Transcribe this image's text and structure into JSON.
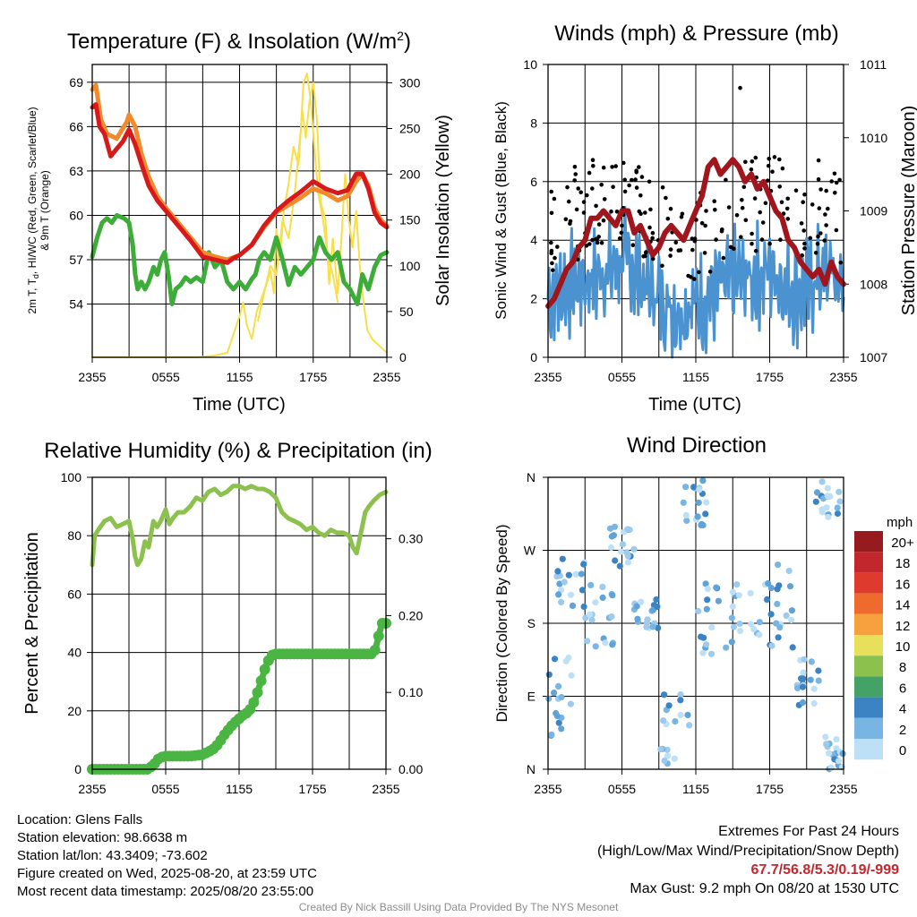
{
  "colors": {
    "temp_2m": "#d7191c",
    "dewpoint": "#3eac38",
    "hi_wc_scarlet": "#d7301f",
    "temp_9m_orange": "#f08a2c",
    "insolation": "#f6df4a",
    "wind": "#4a93d0",
    "gust": "#000000",
    "pressure": "#a1161c",
    "rh": "#8cc14e",
    "precip": "#4bb543"
  },
  "footer": {
    "location": "Location: Glens Falls",
    "elevation": "Station elevation: 98.6638 m",
    "latlon": "Station lat/lon: 43.3409; -73.602",
    "created": "Figure created on Wed, 2025-08-20, at 23:59 UTC",
    "recent": "Most recent data timestamp: 2025/08/20 23:55:00",
    "extremes_title": "Extremes For Past 24 Hours",
    "extremes_subtitle": "(High/Low/Max Wind/Precipitation/Snow Depth)",
    "extremes_values": "67.7/56.8/5.3/0.19/-999",
    "max_gust": "Max Gust: 9.2 mph On 08/20 at 1530 UTC",
    "credit": "Created By Nick Bassill Using Data Provided By The NYS Mesonet"
  },
  "chart_data": [
    {
      "id": "temperature",
      "type": "line",
      "title": "Temperature (F) & Insolation (W/m",
      "title_sup": "2",
      "title_end": ")",
      "xlabel": "Time (UTC)",
      "ylabel_lines": [
        "2m T, T",
        "d",
        ", HI/WC (Red, Green, Scarlet/Blue)",
        "& 9m T (Orange)"
      ],
      "ylabel_right": "Solar Insolation (Yellow)",
      "x_ticks": [
        "2355",
        "0555",
        "1155",
        "1755",
        "2355"
      ],
      "x_range_hours": [
        0,
        24
      ],
      "y_ticks": [
        54,
        57,
        60,
        63,
        66,
        69
      ],
      "ylim": [
        50.4,
        70.2
      ],
      "y2_ticks": [
        0,
        50,
        100,
        150,
        200,
        250,
        300
      ],
      "y2lim": [
        0,
        320
      ],
      "series": [
        {
          "key": "temp_9m",
          "axis": "left",
          "x": [
            0,
            0.3,
            0.7,
            1.2,
            2,
            2.8,
            3,
            3.5,
            4,
            4.6,
            5.3,
            6,
            7,
            8,
            9,
            10,
            11,
            12,
            13,
            14,
            15,
            16,
            17,
            18,
            19,
            20,
            20.8,
            21.5,
            22,
            22.5,
            23,
            23.5,
            24
          ],
          "y": [
            68.5,
            68.8,
            66.5,
            65.5,
            65.2,
            66.3,
            66.8,
            66.0,
            64.2,
            62.6,
            61.3,
            60.5,
            59.5,
            58.5,
            57.5,
            57.2,
            57.0,
            57.3,
            58.0,
            59.2,
            60.2,
            60.7,
            61.2,
            61.8,
            61.5,
            61.0,
            61.3,
            62.3,
            62.8,
            62.0,
            60.5,
            59.7,
            59.3
          ]
        },
        {
          "key": "temp_2m",
          "axis": "left",
          "x": [
            0,
            0.3,
            0.6,
            1,
            1.5,
            2,
            2.5,
            3,
            3.5,
            4,
            4.6,
            5.3,
            6,
            7,
            8,
            9,
            10,
            11,
            11.5,
            12,
            13,
            14,
            15,
            16,
            17,
            18,
            19,
            20,
            20.8,
            21.5,
            22,
            22.5,
            23,
            23.5,
            24
          ],
          "y": [
            67.3,
            67.5,
            66.0,
            65.5,
            64.0,
            64.5,
            65.0,
            65.8,
            64.8,
            63.5,
            62.0,
            61.0,
            60.3,
            59.3,
            58.3,
            57.2,
            57.0,
            56.8,
            57.1,
            57.3,
            58.0,
            59.3,
            60.3,
            61.0,
            61.6,
            62.3,
            61.8,
            61.5,
            61.7,
            62.8,
            62.8,
            61.8,
            60.2,
            59.5,
            59.2
          ]
        },
        {
          "key": "dewpoint",
          "axis": "left",
          "x": [
            0,
            0.4,
            0.8,
            1.2,
            1.6,
            2,
            2.6,
            3,
            3.3,
            3.5,
            3.7,
            4,
            4.3,
            4.6,
            5,
            5.3,
            5.6,
            5.9,
            6.2,
            6.5,
            6.8,
            7.2,
            7.6,
            8,
            8.5,
            9,
            9.5,
            10,
            10.5,
            11,
            11.5,
            12,
            12.5,
            13,
            13.3,
            13.6,
            14,
            14.5,
            15,
            15.5,
            16,
            16.5,
            17,
            17.5,
            18,
            18.5,
            19,
            19.5,
            20,
            20.5,
            21,
            21.3,
            21.6,
            22,
            22.5,
            23,
            23.5,
            24
          ],
          "y": [
            57.2,
            58.5,
            59.5,
            59.8,
            59.5,
            60.0,
            59.8,
            59.5,
            58.0,
            56.0,
            55.0,
            55.5,
            55.0,
            55.5,
            56.5,
            56.0,
            57.0,
            57.5,
            56.0,
            54.0,
            55.0,
            55.3,
            55.8,
            55.5,
            55.8,
            55.5,
            57.5,
            56.5,
            57.0,
            55.5,
            55.0,
            55.5,
            55.0,
            55.7,
            56.0,
            57.0,
            57.5,
            57.0,
            58.5,
            57.0,
            55.3,
            56.5,
            56.0,
            56.5,
            57.0,
            58.5,
            57.5,
            57.0,
            57.5,
            55.5,
            55.0,
            54.5,
            54.0,
            56.0,
            55.0,
            56.5,
            57.3,
            57.5
          ]
        },
        {
          "key": "insolation",
          "axis": "right",
          "x": [
            0,
            3,
            6,
            8.5,
            10,
            11,
            11.5,
            12,
            12.3,
            12.6,
            13,
            13.4,
            13.8,
            14.2,
            14.5,
            14.8,
            15,
            15.3,
            15.6,
            16,
            16.4,
            16.8,
            17.1,
            17.4,
            17.7,
            18,
            18.3,
            18.6,
            19,
            19.3,
            19.6,
            20,
            20.3,
            20.6,
            20.9,
            21.2,
            21.5,
            21.8,
            22.1,
            22.4,
            22.8,
            23.2,
            23.6,
            24
          ],
          "y": [
            0,
            0,
            0,
            0,
            2,
            5,
            25,
            45,
            60,
            35,
            20,
            50,
            65,
            80,
            95,
            70,
            140,
            110,
            160,
            190,
            230,
            210,
            270,
            240,
            280,
            300,
            260,
            170,
            150,
            80,
            130,
            70,
            130,
            200,
            150,
            120,
            160,
            100,
            60,
            30,
            20,
            15,
            10,
            5
          ]
        },
        {
          "key": "insolation_b",
          "axis": "right",
          "x": [
            13.5,
            14,
            14.5,
            15,
            15.5,
            16,
            16.5,
            17,
            17.2,
            17.5,
            17.8,
            18.1,
            18.4,
            18.8,
            19.2,
            19.6,
            20
          ],
          "y": [
            40,
            70,
            100,
            90,
            150,
            130,
            180,
            250,
            300,
            310,
            280,
            230,
            180,
            150,
            110,
            90,
            60
          ]
        }
      ]
    },
    {
      "id": "winds",
      "type": "line",
      "title": "Winds (mph) & Pressure (mb)",
      "xlabel": "Time (UTC)",
      "ylabel": "Sonic Wind & Gust (Blue, Black)",
      "ylabel_right": "Station Pressure (Maroon)",
      "x_ticks": [
        "2355",
        "0555",
        "1155",
        "1755",
        "2355"
      ],
      "x_range_hours": [
        0,
        24
      ],
      "y_ticks": [
        0,
        2,
        4,
        6,
        8,
        10
      ],
      "ylim": [
        0,
        10
      ],
      "y2_ticks": [
        1007,
        1008,
        1009,
        1010,
        1011
      ],
      "y2lim": [
        1007,
        1011
      ],
      "series": [
        {
          "key": "pressure",
          "axis": "right",
          "x": [
            0,
            0.5,
            1,
            1.5,
            2,
            2.5,
            3,
            3.5,
            4,
            4.5,
            5,
            5.5,
            6,
            6.5,
            7,
            7.5,
            8,
            8.5,
            9,
            9.5,
            10,
            10.5,
            11,
            11.5,
            12,
            12.5,
            13,
            13.5,
            14,
            14.5,
            15,
            15.5,
            16,
            16.5,
            17,
            17.5,
            18,
            18.5,
            19,
            19.5,
            20,
            20.5,
            21,
            21.5,
            22,
            22.5,
            23,
            23.5,
            24
          ],
          "y": [
            1007.7,
            1007.8,
            1008.0,
            1008.2,
            1008.3,
            1008.5,
            1008.6,
            1008.9,
            1008.9,
            1009.0,
            1008.9,
            1008.8,
            1009.0,
            1009.0,
            1008.7,
            1008.8,
            1008.6,
            1008.4,
            1008.5,
            1008.7,
            1008.8,
            1008.7,
            1008.6,
            1008.8,
            1009.0,
            1009.2,
            1009.6,
            1009.7,
            1009.5,
            1009.6,
            1009.7,
            1009.6,
            1009.4,
            1009.5,
            1009.3,
            1009.4,
            1009.2,
            1009.0,
            1008.9,
            1008.6,
            1008.5,
            1008.3,
            1008.2,
            1008.1,
            1008.2,
            1008.0,
            1008.3,
            1008.1,
            1008.0
          ]
        }
      ],
      "wind_baseline": {
        "x": [
          0,
          1,
          2,
          3,
          4,
          5,
          6,
          7,
          8,
          9,
          10,
          11,
          12,
          13,
          14,
          15,
          16,
          17,
          18,
          19,
          20,
          21,
          22,
          23,
          24
        ],
        "y": [
          2.0,
          2.3,
          2.5,
          2.6,
          2.8,
          3.0,
          3.3,
          3.0,
          2.4,
          2.2,
          1.6,
          1.6,
          1.8,
          2.0,
          2.4,
          2.6,
          2.7,
          2.8,
          3.0,
          2.6,
          2.2,
          2.4,
          2.8,
          3.0,
          2.2
        ]
      }
    },
    {
      "id": "humidity",
      "type": "line",
      "title": "Relative Humidity (%) & Precipitation (in)",
      "xlabel": "",
      "ylabel": "Percent & Precipitation",
      "x_ticks": [
        "2355",
        "0555",
        "1155",
        "1755",
        "2355"
      ],
      "x_range_hours": [
        0,
        24
      ],
      "y_ticks": [
        0,
        20,
        40,
        60,
        80,
        100
      ],
      "ylim": [
        0,
        100
      ],
      "y2_ticks": [
        "0.00",
        "0.10",
        "0.20",
        "0.30"
      ],
      "y2_values": [
        0,
        0.1,
        0.2,
        0.3
      ],
      "y2lim": [
        0,
        0.38
      ],
      "series": [
        {
          "key": "rh",
          "axis": "left",
          "x": [
            0,
            0.2,
            0.5,
            1,
            1.5,
            2,
            2.5,
            3,
            3.3,
            3.5,
            3.7,
            4,
            4.3,
            4.6,
            5,
            5.3,
            5.6,
            6,
            6.3,
            6.6,
            7,
            7.5,
            8,
            8.5,
            9,
            9.5,
            10,
            10.5,
            11,
            11.5,
            12,
            12.5,
            13,
            13.5,
            14,
            14.5,
            15,
            15.5,
            16,
            16.5,
            17,
            17.5,
            18,
            18.5,
            19,
            19.5,
            20,
            20.5,
            21,
            21.3,
            21.6,
            22,
            22.3,
            22.6,
            23,
            23.5,
            24
          ],
          "y": [
            70,
            80,
            82,
            85,
            86,
            83,
            84,
            85,
            79,
            73,
            70,
            72,
            78,
            76,
            85,
            83,
            85,
            89,
            84,
            86,
            88,
            88,
            90,
            93,
            92,
            95,
            96,
            94,
            95,
            97,
            97,
            96,
            97,
            96,
            96,
            95,
            93,
            88,
            86,
            85,
            84,
            82,
            83,
            81,
            80,
            82,
            81,
            81,
            80,
            76,
            74,
            82,
            88,
            90,
            92,
            94,
            95
          ]
        },
        {
          "key": "precip",
          "axis": "right",
          "x": [
            0,
            2,
            3,
            4.5,
            5,
            5.2,
            5.5,
            6,
            7,
            8,
            9,
            9.8,
            10.3,
            10.8,
            11.3,
            11.8,
            12.3,
            12.8,
            13.3,
            13.6,
            13.9,
            14.2,
            14.6,
            15,
            18,
            20,
            22,
            22.8,
            23,
            23.2,
            23.5,
            23.7,
            24
          ],
          "y": [
            0,
            0,
            0,
            0,
            0.005,
            0.01,
            0.015,
            0.017,
            0.017,
            0.017,
            0.019,
            0.025,
            0.033,
            0.045,
            0.055,
            0.063,
            0.07,
            0.075,
            0.09,
            0.105,
            0.12,
            0.135,
            0.148,
            0.15,
            0.15,
            0.15,
            0.15,
            0.15,
            0.15,
            0.16,
            0.18,
            0.19,
            0.19
          ]
        }
      ]
    },
    {
      "id": "direction",
      "type": "scatter",
      "title": "Wind Direction",
      "ylabel": "Direction (Colored By Speed)",
      "x_ticks": [
        "2355",
        "0555",
        "1155",
        "1755",
        "2355"
      ],
      "x_range_hours": [
        0,
        24
      ],
      "y_ticks": [
        "N",
        "E",
        "S",
        "W",
        "N"
      ],
      "y_values": [
        0,
        90,
        180,
        270,
        360
      ],
      "ylim": [
        0,
        360
      ],
      "colorbar": {
        "title": "mph",
        "labels": [
          "20+",
          "18",
          "16",
          "14",
          "12",
          "10",
          "8",
          "6",
          "4",
          "2",
          "0"
        ],
        "colors": [
          "#971a1e",
          "#c1272d",
          "#de3b2e",
          "#ef6a2d",
          "#f7a13e",
          "#e8e05a",
          "#8cc14e",
          "#45a266",
          "#3c83c4",
          "#78b5e2",
          "#bde0f6"
        ]
      }
    }
  ]
}
